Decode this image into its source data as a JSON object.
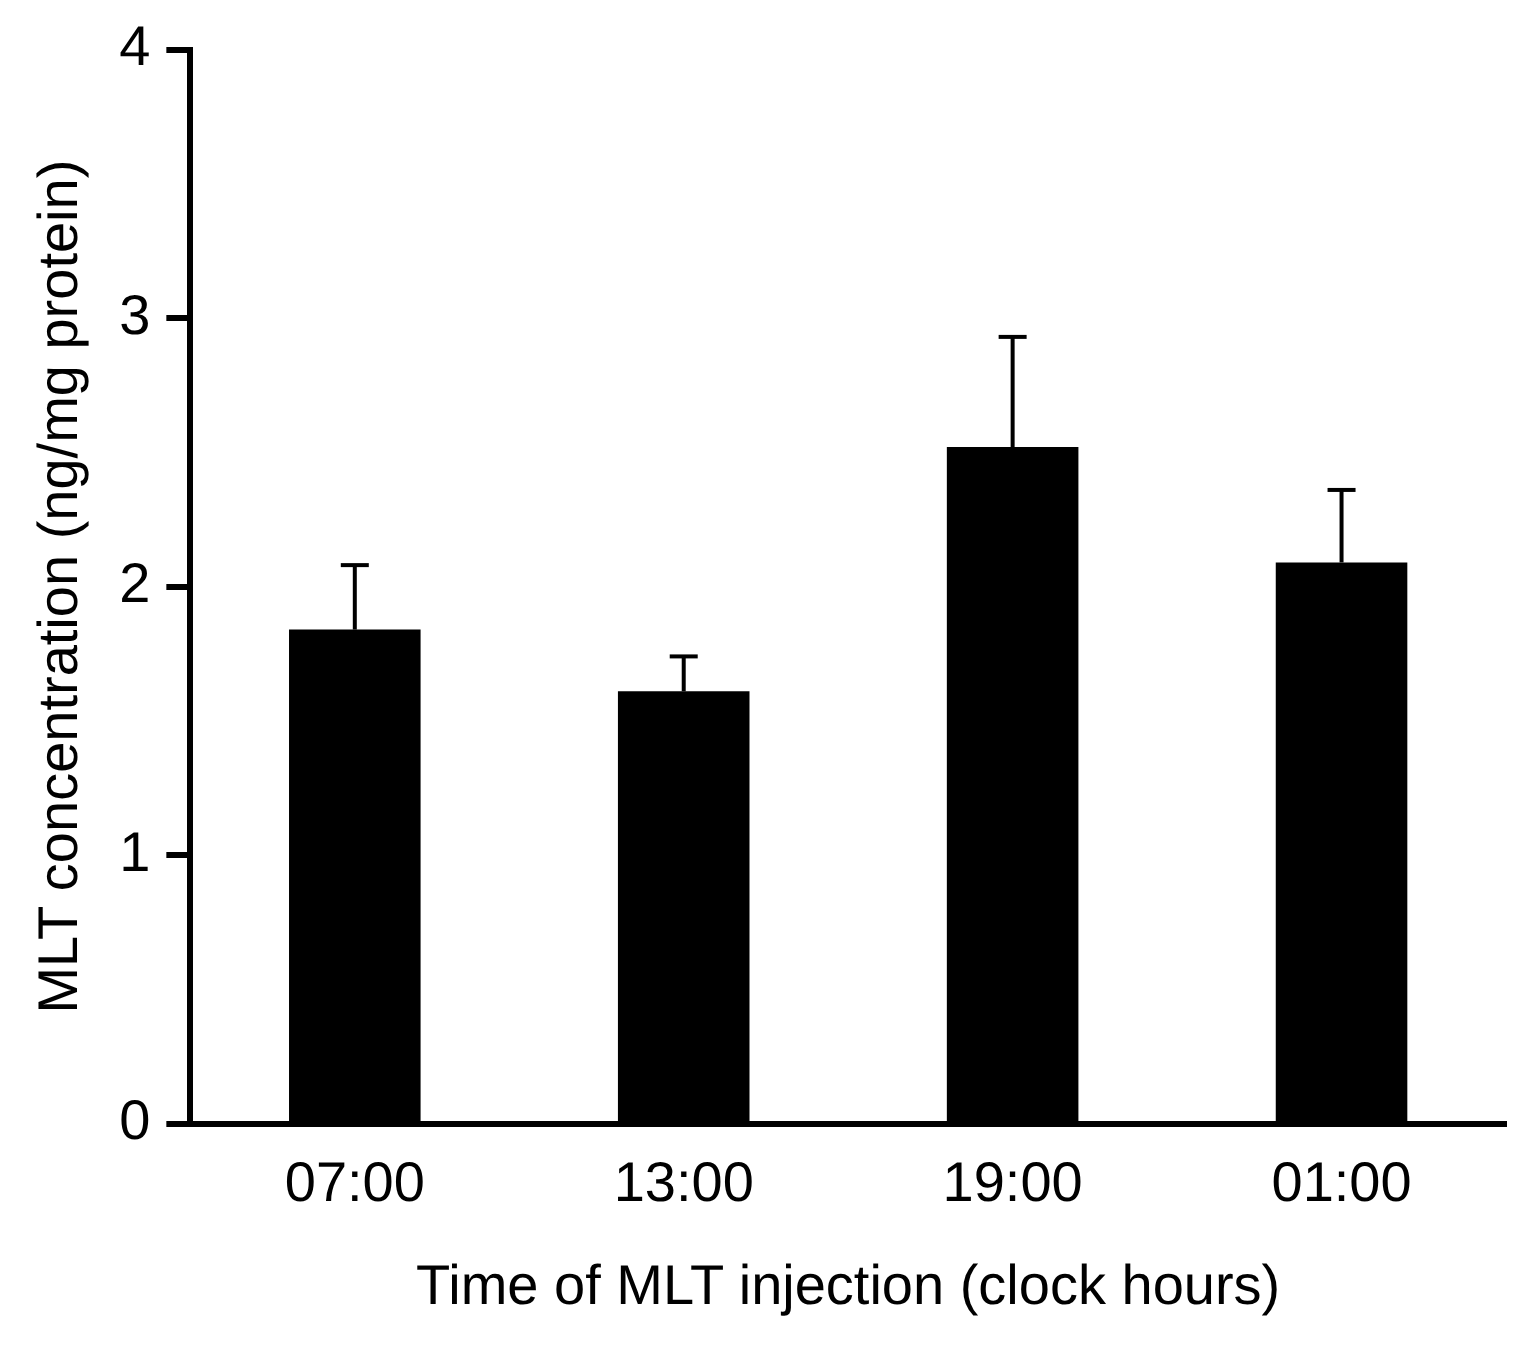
{
  "chart_data": {
    "type": "bar",
    "xlabel": "Time of MLT injection (clock hours)",
    "ylabel": "MLT concentration (ng/mg protein)",
    "categories": [
      "07:00",
      "13:00",
      "19:00",
      "01:00"
    ],
    "values": [
      1.84,
      1.61,
      2.52,
      2.09
    ],
    "errors": [
      [
        1.84,
        2.08
      ],
      [
        1.61,
        1.74
      ],
      [
        2.52,
        2.93
      ],
      [
        2.09,
        2.36
      ]
    ],
    "color": "#000000",
    "ylim": [
      0,
      4
    ],
    "yticks": [
      0,
      1,
      2,
      3,
      4
    ],
    "grid": false,
    "legend": false
  }
}
